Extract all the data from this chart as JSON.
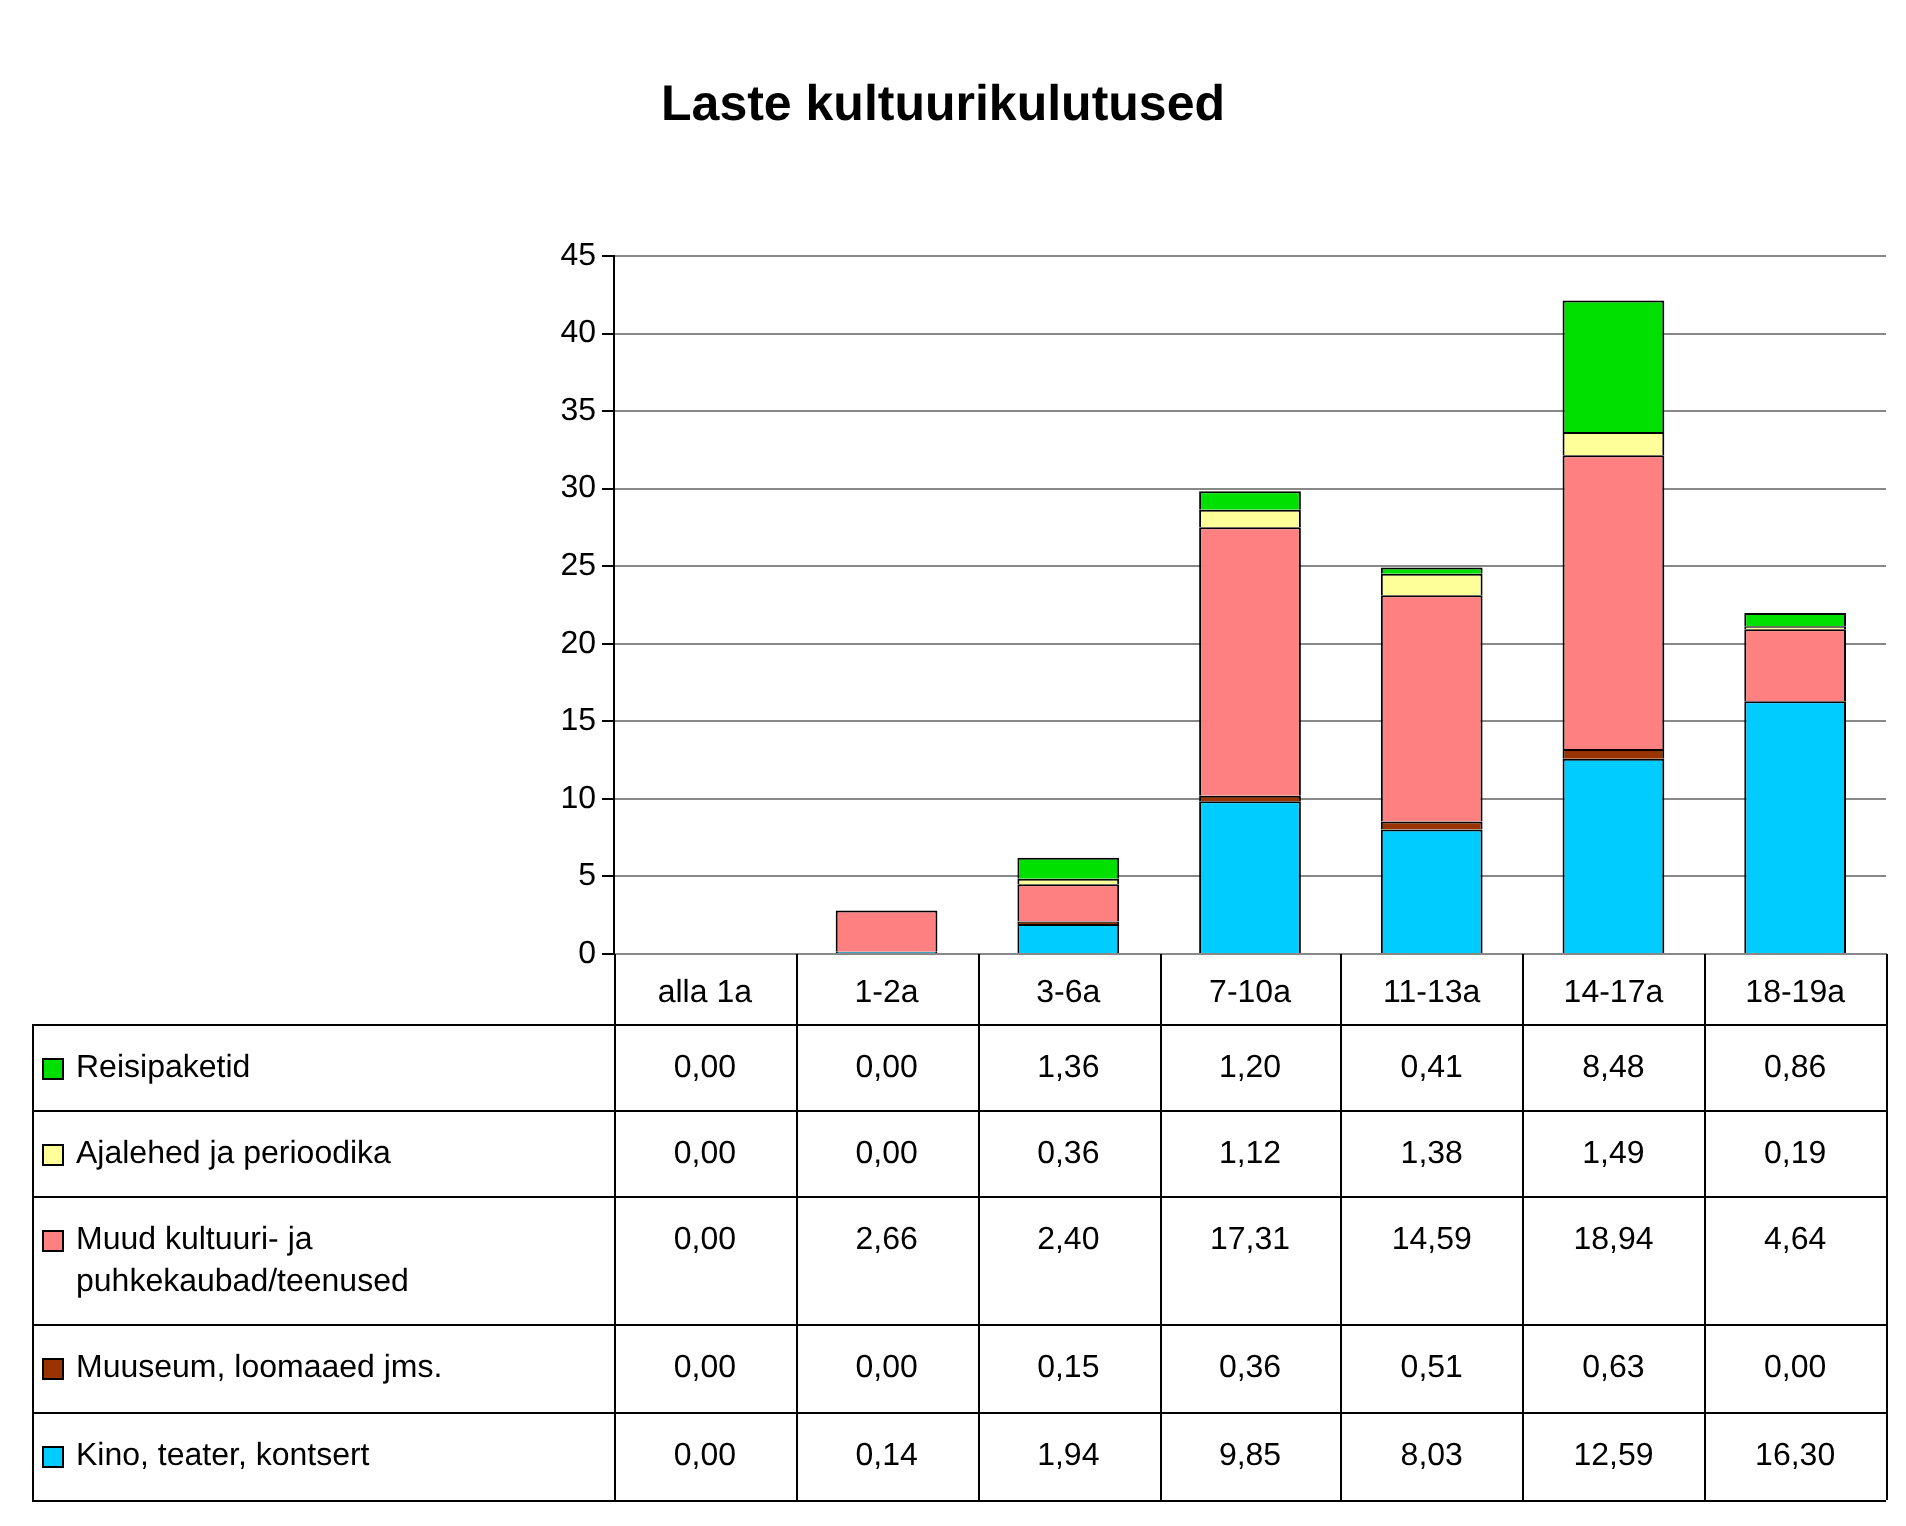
{
  "chart_data": {
    "type": "bar",
    "title": "Laste kultuurikulutused",
    "stacked": true,
    "categories": [
      "alla 1a",
      "1-2a",
      "3-6a",
      "7-10a",
      "11-13a",
      "14-17a",
      "18-19a"
    ],
    "ylim": [
      0,
      45
    ],
    "yticks": [
      0,
      5,
      10,
      15,
      20,
      25,
      30,
      35,
      40,
      45
    ],
    "grid": "y",
    "legend": "bottom left",
    "series": [
      {
        "name": "Kino, teater, kontsert",
        "color": "#00ccff",
        "values": [
          0,
          0.14,
          1.94,
          9.85,
          8.03,
          12.59,
          16.3
        ],
        "value_labels": [
          "0,00",
          "0,14",
          "1,94",
          "9,85",
          "8,03",
          "12,59",
          "16,30"
        ]
      },
      {
        "name": "Muuseum, loomaaed jms.",
        "color": "#993300",
        "values": [
          0,
          0,
          0.15,
          0.36,
          0.51,
          0.63,
          0
        ],
        "value_labels": [
          "0,00",
          "0,00",
          "0,15",
          "0,36",
          "0,51",
          "0,63",
          "0,00"
        ]
      },
      {
        "name": "Muud kultuuri- ja puhkekaubad/teenused",
        "color": "#ff8080",
        "values": [
          0,
          2.66,
          2.4,
          17.31,
          14.59,
          18.94,
          4.64
        ],
        "value_labels": [
          "0,00",
          "2,66",
          "2,40",
          "17,31",
          "14,59",
          "18,94",
          "4,64"
        ]
      },
      {
        "name": "Ajalehed ja perioodika",
        "color": "#ffff99",
        "values": [
          0,
          0,
          0.36,
          1.12,
          1.38,
          1.49,
          0.19
        ],
        "value_labels": [
          "0,00",
          "0,00",
          "0,36",
          "1,12",
          "1,38",
          "1,49",
          "0,19"
        ]
      },
      {
        "name": "Reisipaketid",
        "color": "#00e000",
        "values": [
          0,
          0,
          1.36,
          1.2,
          0.41,
          8.48,
          0.86
        ],
        "value_labels": [
          "0,00",
          "0,00",
          "1,36",
          "1,20",
          "0,41",
          "8,48",
          "0,86"
        ]
      }
    ]
  }
}
